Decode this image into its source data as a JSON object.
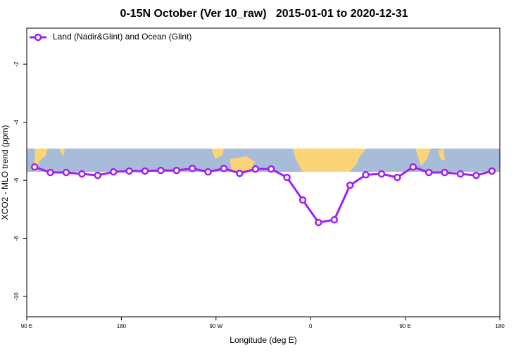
{
  "chart_data": {
    "type": "line",
    "title": "0-15N October (Ver 10_raw)   2015-01-01 to 2020-12-31",
    "xlabel": "Longitude (deg E)",
    "ylabel": "XCO2 - MLO trend (ppm)",
    "xlim": [
      90,
      540
    ],
    "ylim": [
      -10.7,
      -0.76
    ],
    "xticks": [
      {
        "value": 90,
        "label": "90 E"
      },
      180,
      {
        "value": 270,
        "label": "90 W"
      },
      {
        "value": 360,
        "label": "0"
      },
      {
        "value": 450,
        "label": "90 E"
      },
      {
        "value": 540,
        "label": "180"
      }
    ],
    "yticks": [
      -2,
      -4,
      -6,
      -8,
      -10
    ],
    "legend": "upper left",
    "series": [
      {
        "name": "Land (Nadir&Glint) and Ocean (Glint)",
        "color": "#a020f0",
        "x": [
          97.5,
          112.5,
          127.5,
          142.5,
          157.5,
          172.5,
          187.5,
          202.5,
          217.5,
          232.5,
          247.5,
          262.5,
          277.5,
          292.5,
          307.5,
          322.5,
          337.5,
          352.5,
          367.5,
          382.5,
          397.5,
          412.5,
          427.5,
          442.5,
          457.5,
          472.5,
          487.5,
          502.5,
          517.5,
          532.5
        ],
        "values": [
          -5.54,
          -5.73,
          -5.73,
          -5.78,
          -5.83,
          -5.71,
          -5.68,
          -5.68,
          -5.66,
          -5.66,
          -5.59,
          -5.71,
          -5.59,
          -5.76,
          -5.61,
          -5.61,
          -5.9,
          -6.68,
          -7.45,
          -7.36,
          -6.17,
          -5.81,
          -5.78,
          -5.9,
          -5.54,
          -5.73,
          -5.73,
          -5.78,
          -5.83,
          -5.68
        ]
      }
    ]
  }
}
